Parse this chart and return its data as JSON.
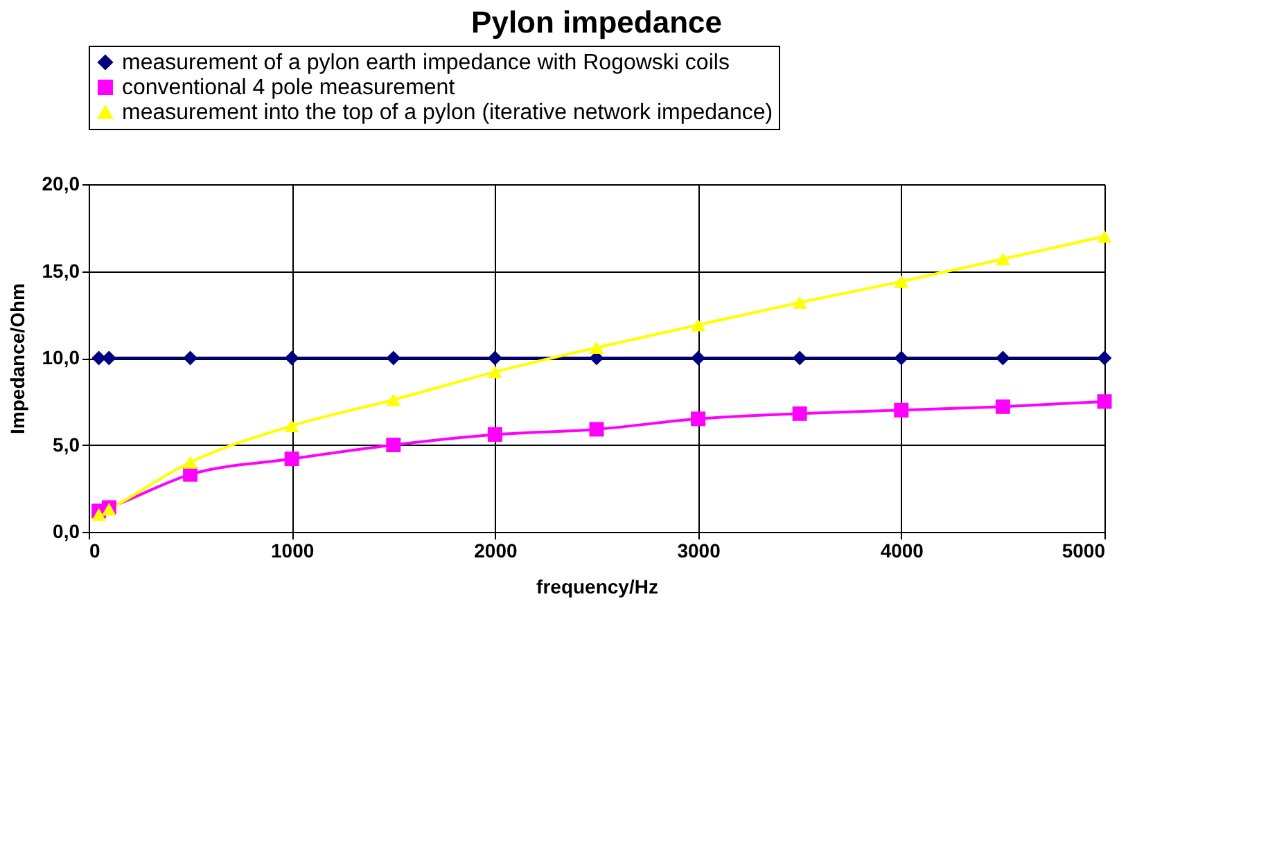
{
  "chart_data": {
    "type": "line",
    "title": "Pylon impedance",
    "xlabel": "frequency/Hz",
    "ylabel": "Impedance/Ohm",
    "xlim": [
      0,
      5000
    ],
    "xticks": [
      0,
      1000,
      2000,
      3000,
      4000,
      5000
    ],
    "ylim": [
      0,
      20
    ],
    "yticks": [
      {
        "value": 0,
        "label": "0,0"
      },
      {
        "value": 5,
        "label": "5,0"
      },
      {
        "value": 10,
        "label": "10,0"
      },
      {
        "value": 15,
        "label": "15,0"
      },
      {
        "value": 20,
        "label": "20,0"
      }
    ],
    "grid": true,
    "legend": "top",
    "x": [
      50,
      100,
      500,
      1000,
      1500,
      2000,
      2500,
      3000,
      3500,
      4000,
      4500,
      5000
    ],
    "series": [
      {
        "name": "measurement of a pylon earth impedance with Rogowski coils",
        "color": "#000080",
        "marker": "diamond",
        "values": [
          10,
          10,
          10,
          10,
          10,
          10,
          10,
          10,
          10,
          10,
          10,
          10
        ]
      },
      {
        "name": "conventional 4 pole measurement",
        "color": "#ff00ff",
        "marker": "square",
        "values": [
          1.2,
          1.4,
          3.3,
          4.2,
          5.0,
          5.6,
          5.9,
          6.5,
          6.8,
          7.0,
          7.2,
          7.5
        ]
      },
      {
        "name": "measurement into the top of a pylon (iterative network impedance)",
        "color": "#ffff00",
        "marker": "triangle",
        "values": [
          1.0,
          1.3,
          4.0,
          6.1,
          7.6,
          9.2,
          10.6,
          11.9,
          13.2,
          14.4,
          15.7,
          17.0
        ]
      }
    ]
  }
}
